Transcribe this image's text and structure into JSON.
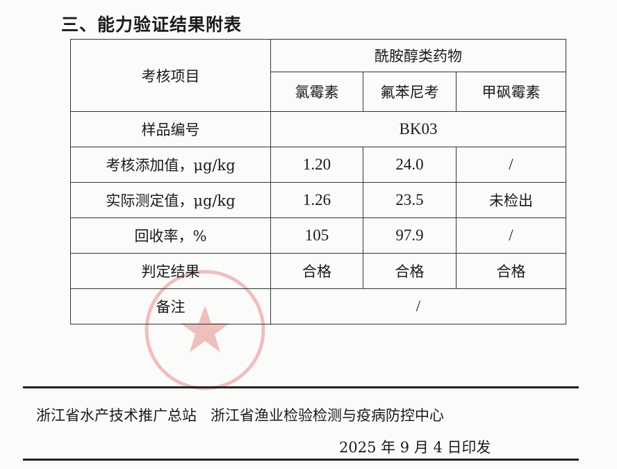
{
  "title": "三、能力验证结果附表",
  "table": {
    "item_header": "考核项目",
    "group_header": "酰胺醇类药物",
    "drugs": [
      "氯霉素",
      "氟苯尼考",
      "甲砜霉素"
    ],
    "sample_label": "样品编号",
    "sample_id": "BK03",
    "rows": [
      {
        "label": "考核添加值，μg/kg",
        "values": [
          "1.20",
          "24.0",
          "/"
        ]
      },
      {
        "label": "实际测定值，μg/kg",
        "values": [
          "1.26",
          "23.5",
          "未检出"
        ]
      },
      {
        "label": "回收率，%",
        "values": [
          "105",
          "97.9",
          "/"
        ]
      },
      {
        "label": "判定结果",
        "values": [
          "合格",
          "合格",
          "合格"
        ]
      }
    ],
    "remark_label": "备注",
    "remark_value": "/"
  },
  "footer": {
    "org1": "浙江省水产技术推广总站",
    "org2": "浙江省渔业检验检测与疫病防控中心",
    "date": "2025 年 9 月 4 日印发"
  },
  "seal_color": "#d9534f"
}
